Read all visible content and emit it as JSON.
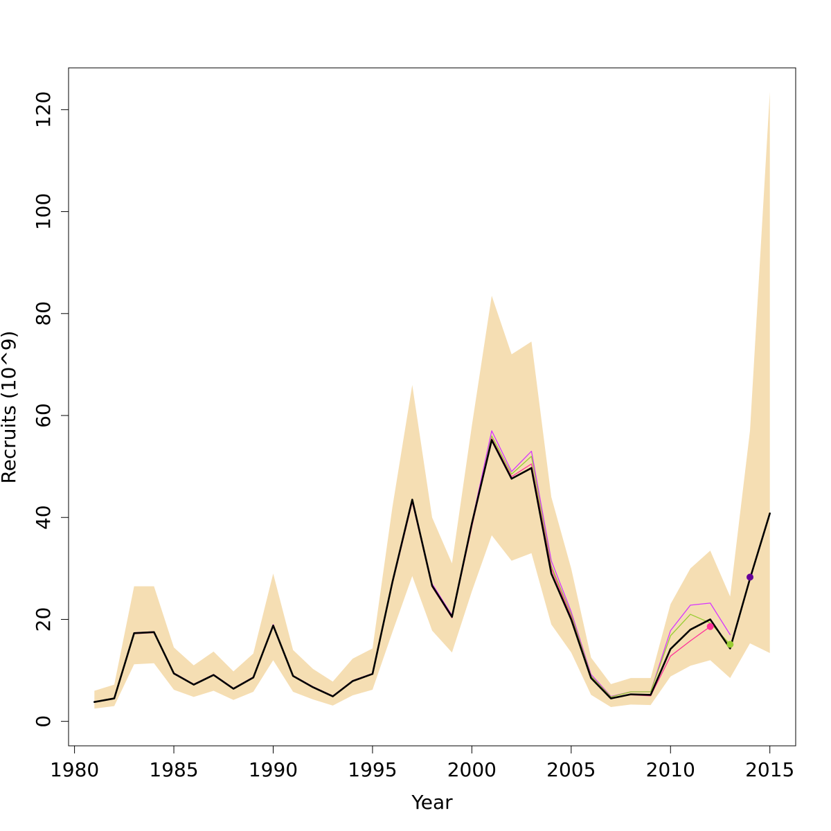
{
  "chart_data": {
    "type": "line",
    "title": "",
    "xlabel": "Year",
    "ylabel": "Recruits (10^9)",
    "xlim": [
      1979.7,
      2016.3
    ],
    "ylim": [
      -4.8,
      128.2
    ],
    "x_ticks": [
      1980,
      1985,
      1990,
      1995,
      2000,
      2005,
      2010,
      2015
    ],
    "y_ticks": [
      0,
      20,
      40,
      60,
      80,
      100,
      120
    ],
    "grid": false,
    "legend": "none",
    "band": {
      "color": "#f5deb3",
      "x": [
        1981,
        1982,
        1983,
        1984,
        1985,
        1986,
        1987,
        1988,
        1989,
        1990,
        1991,
        1992,
        1993,
        1994,
        1995,
        1996,
        1997,
        1998,
        1999,
        2000,
        2001,
        2002,
        2003,
        2004,
        2005,
        2006,
        2007,
        2008,
        2009,
        2010,
        2011,
        2012,
        2013,
        2014,
        2015
      ],
      "upper": [
        6.0,
        7.2,
        26.5,
        26.5,
        14.5,
        11.0,
        13.7,
        9.8,
        13.3,
        29.0,
        14.0,
        10.3,
        7.8,
        12.3,
        14.3,
        42.0,
        66.0,
        40.0,
        31.0,
        58.0,
        83.5,
        72.0,
        74.5,
        44.0,
        30.0,
        12.5,
        7.3,
        8.5,
        8.5,
        23.0,
        30.0,
        33.5,
        24.5,
        57.0,
        123.5
      ],
      "lower": [
        2.5,
        3.0,
        11.2,
        11.4,
        6.2,
        4.8,
        6.0,
        4.2,
        5.8,
        12.0,
        5.8,
        4.3,
        3.1,
        5.1,
        6.2,
        17.5,
        28.5,
        17.8,
        13.5,
        25.5,
        36.5,
        31.5,
        33.0,
        19.0,
        13.5,
        5.2,
        2.8,
        3.3,
        3.2,
        8.8,
        10.9,
        12.0,
        8.5,
        15.3,
        13.4
      ]
    },
    "series": [
      {
        "color": "#d633ff",
        "width": 1.3,
        "x": [
          1981,
          1982,
          1983,
          1984,
          1985,
          1986,
          1987,
          1988,
          1989,
          1990,
          1991,
          1992,
          1993,
          1994,
          1995,
          1996,
          1997,
          1998,
          1999,
          2000,
          2001,
          2002,
          2003,
          2004,
          2005,
          2006,
          2007,
          2008,
          2009,
          2010,
          2011,
          2012,
          2013
        ],
        "values": [
          3.8,
          4.6,
          17.4,
          17.6,
          9.5,
          7.3,
          9.2,
          6.5,
          8.7,
          19.0,
          9.0,
          6.8,
          5.0,
          8.0,
          9.4,
          27.5,
          43.5,
          27.0,
          20.8,
          39.0,
          57.0,
          49.0,
          53.0,
          31.5,
          21.5,
          9.2,
          4.9,
          5.8,
          5.8,
          17.8,
          22.8,
          23.2,
          17.0
        ],
        "end_marker": false
      },
      {
        "color": "#99cc33",
        "width": 1.3,
        "x": [
          1981,
          1982,
          1983,
          1984,
          1985,
          1986,
          1987,
          1988,
          1989,
          1990,
          1991,
          1992,
          1993,
          1994,
          1995,
          1996,
          1997,
          1998,
          1999,
          2000,
          2001,
          2002,
          2003,
          2004,
          2005,
          2006,
          2007,
          2008,
          2009,
          2010,
          2011,
          2012,
          2013
        ],
        "values": [
          3.8,
          4.6,
          17.3,
          17.5,
          9.4,
          7.2,
          9.1,
          6.4,
          8.6,
          18.8,
          8.9,
          6.7,
          4.9,
          7.9,
          9.3,
          27.2,
          43.2,
          26.6,
          20.5,
          38.5,
          56.0,
          48.5,
          52.0,
          30.5,
          21.0,
          8.9,
          4.8,
          5.8,
          5.8,
          16.8,
          21.0,
          19.3,
          15.1
        ],
        "end_marker": true
      },
      {
        "color": "#ff3399",
        "width": 1.3,
        "x": [
          1981,
          1982,
          1983,
          1984,
          1985,
          1986,
          1987,
          1988,
          1989,
          1990,
          1991,
          1992,
          1993,
          1994,
          1995,
          1996,
          1997,
          1998,
          1999,
          2000,
          2001,
          2002,
          2003,
          2004,
          2005,
          2006,
          2007,
          2008,
          2009,
          2010,
          2011,
          2012
        ],
        "values": [
          3.8,
          4.5,
          17.2,
          17.4,
          9.4,
          7.2,
          9.1,
          6.4,
          8.6,
          18.7,
          8.9,
          6.7,
          4.9,
          7.9,
          9.3,
          27.0,
          43.0,
          26.4,
          20.3,
          38.2,
          55.5,
          48.0,
          50.5,
          30.0,
          20.5,
          8.6,
          4.6,
          5.2,
          5.0,
          12.8,
          15.8,
          18.6
        ],
        "end_marker": true
      },
      {
        "color": "#000000",
        "width": 2.6,
        "x": [
          1981,
          1982,
          1983,
          1984,
          1985,
          1986,
          1987,
          1988,
          1989,
          1990,
          1991,
          1992,
          1993,
          1994,
          1995,
          1996,
          1997,
          1998,
          1999,
          2000,
          2001,
          2002,
          2003,
          2004,
          2005,
          2006,
          2007,
          2008,
          2009,
          2010,
          2011,
          2012,
          2013,
          2014,
          2015
        ],
        "values": [
          3.8,
          4.5,
          17.3,
          17.5,
          9.4,
          7.2,
          9.1,
          6.4,
          8.6,
          18.8,
          8.9,
          6.7,
          4.9,
          7.9,
          9.3,
          27.3,
          43.5,
          26.6,
          20.5,
          38.8,
          55.2,
          47.6,
          49.7,
          29.0,
          20.0,
          8.5,
          4.5,
          5.3,
          5.2,
          14.2,
          18.0,
          20.0,
          14.3,
          28.0,
          40.8
        ],
        "end_marker": false
      }
    ],
    "markers": [
      {
        "x": 2014,
        "y": 28.3,
        "color": "#660099"
      }
    ]
  }
}
